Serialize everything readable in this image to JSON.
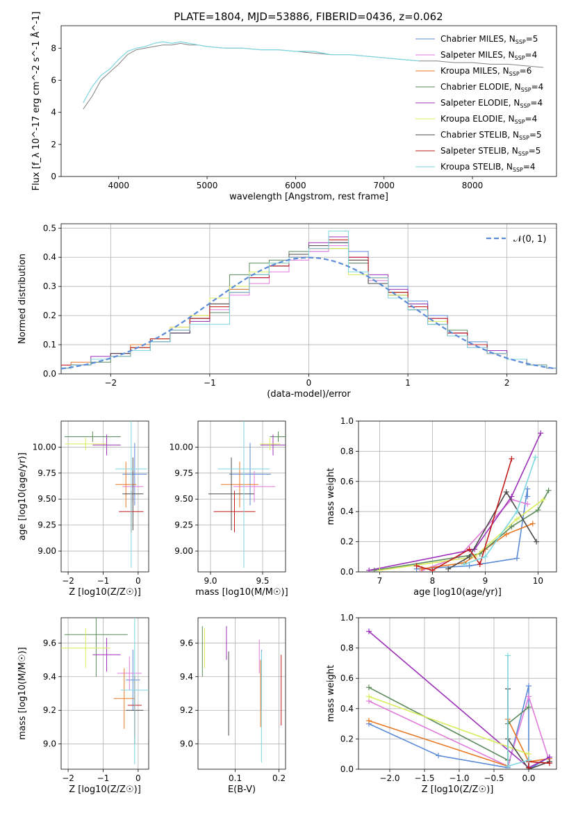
{
  "figure_title": "PLATE=1804, MJD=53886, FIBERID=0436, z=0.062",
  "models": [
    {
      "name": "Chabrier MILES",
      "nssp": "5",
      "color": "#5b8bd6"
    },
    {
      "name": "Salpeter MILES",
      "nssp": "4",
      "color": "#e07adb"
    },
    {
      "name": "Kroupa MILES",
      "nssp": "6",
      "color": "#e87722"
    },
    {
      "name": "Chabrier ELODIE",
      "nssp": "4",
      "color": "#5a8a5a"
    },
    {
      "name": "Salpeter ELODIE",
      "nssp": "4",
      "color": "#9b30b8"
    },
    {
      "name": "Kroupa ELODIE",
      "nssp": "4",
      "color": "#d9ec5c"
    },
    {
      "name": "Chabrier STELIB",
      "nssp": "5",
      "color": "#4a4a4a"
    },
    {
      "name": "Salpeter STELIB",
      "nssp": "5",
      "color": "#c21a1a"
    },
    {
      "name": "Kroupa STELIB",
      "nssp": "4",
      "color": "#7dd6e0"
    }
  ],
  "chart_data": [
    {
      "id": "spectrum",
      "type": "line",
      "title": "PLATE=1804, MJD=53886, FIBERID=0436, z=0.062",
      "xlabel": "wavelength [Angstrom, rest frame]",
      "ylabel": "Flux [f_λ 10^-17 erg cm^-2 s^-1 Å^-1]",
      "xlim": [
        3350,
        8950
      ],
      "ylim": [
        0,
        9.4
      ],
      "xticks": [
        4000,
        5000,
        6000,
        7000,
        8000
      ],
      "yticks": [
        0,
        2,
        4,
        6,
        8
      ],
      "legend": "top-right",
      "data_color": "#808080",
      "data_x": [
        3600,
        3700,
        3800,
        3900,
        4000,
        4100,
        4200,
        4300,
        4400,
        4500,
        4600,
        4700,
        4800,
        4900,
        5000,
        5200,
        5400,
        5600,
        5800,
        6000,
        6200,
        6400,
        6600,
        6800,
        7000,
        7200,
        7400,
        7600,
        7800,
        8000,
        8200,
        8400,
        8600,
        8800
      ],
      "data_y": [
        4.2,
        5.0,
        6.0,
        6.5,
        7.0,
        7.6,
        7.9,
        8.0,
        8.1,
        8.2,
        8.2,
        8.3,
        8.2,
        8.2,
        8.1,
        8.0,
        8.0,
        7.9,
        7.9,
        7.8,
        7.7,
        7.6,
        7.6,
        7.5,
        7.4,
        7.3,
        7.2,
        7.2,
        7.1,
        7.1,
        7.0,
        7.0,
        6.9,
        6.8
      ],
      "model_x": [
        3600,
        3700,
        3800,
        3900,
        4000,
        4100,
        4200,
        4300,
        4400,
        4500,
        4600,
        4700,
        4800,
        4900,
        5000,
        5200,
        5400,
        5600,
        5800,
        6000,
        6200,
        6400,
        6600,
        6800,
        7000,
        7200,
        7400
      ],
      "model_y": [
        4.6,
        5.6,
        6.3,
        6.7,
        7.3,
        7.8,
        8.0,
        8.1,
        8.3,
        8.4,
        8.3,
        8.4,
        8.3,
        8.2,
        8.1,
        8.0,
        8.0,
        7.9,
        7.9,
        7.8,
        7.8,
        7.6,
        7.6,
        7.5,
        7.4,
        7.3,
        7.2
      ]
    },
    {
      "id": "residuals",
      "type": "step",
      "xlabel": "(data-model)/error",
      "ylabel": "Normed distribution",
      "xlim": [
        -2.5,
        2.5
      ],
      "ylim": [
        0,
        0.515
      ],
      "xticks": [
        -2,
        -1,
        0,
        1,
        2
      ],
      "yticks": [
        0.0,
        0.1,
        0.2,
        0.3,
        0.4,
        0.5
      ],
      "legend": "top-right",
      "normal_label": "𝒩(0, 1)",
      "normal_color": "#5b8bd6",
      "bin_edges": [
        -2.6,
        -2.4,
        -2.2,
        -2.0,
        -1.8,
        -1.6,
        -1.4,
        -1.2,
        -1.0,
        -0.8,
        -0.6,
        -0.4,
        -0.2,
        0.0,
        0.2,
        0.4,
        0.6,
        0.8,
        1.0,
        1.2,
        1.4,
        1.6,
        1.8,
        2.0,
        2.2,
        2.4,
        2.6
      ],
      "hist_values": [
        [
          0.02,
          0.03,
          0.05,
          0.06,
          0.08,
          0.11,
          0.14,
          0.19,
          0.24,
          0.29,
          0.33,
          0.37,
          0.4,
          0.42,
          0.45,
          0.42,
          0.33,
          0.3,
          0.25,
          0.2,
          0.14,
          0.11,
          0.07,
          0.05,
          0.03,
          0.02
        ],
        [
          0.03,
          0.03,
          0.05,
          0.07,
          0.09,
          0.12,
          0.15,
          0.18,
          0.22,
          0.27,
          0.31,
          0.35,
          0.39,
          0.42,
          0.44,
          0.38,
          0.32,
          0.27,
          0.22,
          0.18,
          0.13,
          0.09,
          0.07,
          0.05,
          0.03,
          0.02
        ],
        [
          0.02,
          0.04,
          0.05,
          0.07,
          0.1,
          0.12,
          0.16,
          0.2,
          0.24,
          0.29,
          0.34,
          0.38,
          0.4,
          0.43,
          0.46,
          0.39,
          0.33,
          0.28,
          0.23,
          0.18,
          0.14,
          0.1,
          0.07,
          0.05,
          0.03,
          0.02
        ],
        [
          0.02,
          0.03,
          0.04,
          0.06,
          0.09,
          0.11,
          0.15,
          0.18,
          0.21,
          0.34,
          0.38,
          0.39,
          0.42,
          0.44,
          0.43,
          0.38,
          0.31,
          0.27,
          0.24,
          0.18,
          0.15,
          0.1,
          0.08,
          0.05,
          0.03,
          0.02
        ],
        [
          0.02,
          0.03,
          0.06,
          0.07,
          0.09,
          0.11,
          0.14,
          0.18,
          0.23,
          0.28,
          0.33,
          0.37,
          0.4,
          0.45,
          0.47,
          0.4,
          0.34,
          0.29,
          0.24,
          0.19,
          0.14,
          0.1,
          0.08,
          0.05,
          0.03,
          0.02
        ],
        [
          0.02,
          0.03,
          0.05,
          0.06,
          0.09,
          0.12,
          0.16,
          0.2,
          0.26,
          0.3,
          0.35,
          0.38,
          0.41,
          0.44,
          0.43,
          0.34,
          0.33,
          0.27,
          0.22,
          0.18,
          0.13,
          0.1,
          0.07,
          0.05,
          0.03,
          0.02
        ],
        [
          0.02,
          0.03,
          0.05,
          0.07,
          0.08,
          0.11,
          0.14,
          0.19,
          0.24,
          0.28,
          0.34,
          0.37,
          0.41,
          0.44,
          0.45,
          0.39,
          0.31,
          0.28,
          0.22,
          0.17,
          0.13,
          0.1,
          0.07,
          0.05,
          0.03,
          0.02
        ],
        [
          0.03,
          0.03,
          0.05,
          0.06,
          0.09,
          0.12,
          0.15,
          0.19,
          0.23,
          0.28,
          0.33,
          0.37,
          0.4,
          0.43,
          0.46,
          0.4,
          0.33,
          0.28,
          0.23,
          0.19,
          0.14,
          0.1,
          0.07,
          0.05,
          0.03,
          0.02
        ],
        [
          0.02,
          0.03,
          0.05,
          0.06,
          0.08,
          0.11,
          0.15,
          0.17,
          0.17,
          0.28,
          0.34,
          0.38,
          0.4,
          0.43,
          0.49,
          0.35,
          0.33,
          0.26,
          0.22,
          0.17,
          0.13,
          0.09,
          0.07,
          0.05,
          0.03,
          0.02
        ]
      ]
    },
    {
      "id": "age-vs-z",
      "type": "errorbar",
      "xlabel": "Z [log10(Z/Z☉)]",
      "ylabel": "age  [log10(age/yr)]",
      "xlim": [
        -2.2,
        0.3
      ],
      "ylim": [
        8.8,
        10.25
      ],
      "xticks": [
        -2,
        -1,
        0
      ],
      "yticks": [
        9.0,
        9.25,
        9.5,
        9.75,
        10.0
      ],
      "points": [
        {
          "x": -0.1,
          "xerr": 0.35,
          "y": 9.74,
          "yerr": 0.3
        },
        {
          "x": -0.15,
          "xerr": 0.3,
          "y": 9.62,
          "yerr": 0.15
        },
        {
          "x": -0.35,
          "xerr": 0.3,
          "y": 9.64,
          "yerr": 0.22
        },
        {
          "x": -1.3,
          "xerr": 0.8,
          "y": 10.1,
          "yerr": 0.05
        },
        {
          "x": -0.9,
          "xerr": 0.4,
          "y": 10.02,
          "yerr": 0.1
        },
        {
          "x": -1.5,
          "xerr": 0.6,
          "y": 10.03,
          "yerr": 0.06
        },
        {
          "x": -0.15,
          "xerr": 0.3,
          "y": 9.55,
          "yerr": 0.35
        },
        {
          "x": -0.2,
          "xerr": 0.35,
          "y": 9.38,
          "yerr": 0.2
        },
        {
          "x": -0.2,
          "xerr": 0.45,
          "y": 9.79,
          "yerr": 0.95
        }
      ]
    },
    {
      "id": "age-vs-mass",
      "type": "errorbar",
      "xlabel": "mass [log10(M/M☉)]",
      "ylabel": "",
      "xlim": [
        8.88,
        9.72
      ],
      "ylim": [
        8.8,
        10.25
      ],
      "xticks": [
        9.0,
        9.5
      ],
      "yticks": [
        9.0,
        9.25,
        9.5,
        9.75,
        10.0
      ],
      "points": [
        {
          "x": 9.38,
          "xerr": 0.2,
          "y": 9.74,
          "yerr": 0.3
        },
        {
          "x": 9.42,
          "xerr": 0.2,
          "y": 9.62,
          "yerr": 0.15
        },
        {
          "x": 9.28,
          "xerr": 0.18,
          "y": 9.64,
          "yerr": 0.22
        },
        {
          "x": 9.65,
          "xerr": 0.08,
          "y": 10.1,
          "yerr": 0.05
        },
        {
          "x": 9.6,
          "xerr": 0.12,
          "y": 10.02,
          "yerr": 0.1
        },
        {
          "x": 9.57,
          "xerr": 0.1,
          "y": 10.03,
          "yerr": 0.06
        },
        {
          "x": 9.2,
          "xerr": 0.22,
          "y": 9.55,
          "yerr": 0.35
        },
        {
          "x": 9.23,
          "xerr": 0.2,
          "y": 9.38,
          "yerr": 0.2
        },
        {
          "x": 9.32,
          "xerr": 0.25,
          "y": 9.79,
          "yerr": 0.95
        }
      ]
    },
    {
      "id": "weight-vs-age",
      "type": "line",
      "xlabel": "age  [log10(age/yr)]",
      "ylabel": "mass weight",
      "xlim": [
        6.6,
        10.35
      ],
      "ylim": [
        0,
        1.0
      ],
      "xticks": [
        7,
        8,
        9,
        10
      ],
      "yticks": [
        0.0,
        0.2,
        0.4,
        0.6,
        0.8,
        1.0
      ],
      "series": [
        {
          "x": [
            7.7,
            8.7,
            9.6,
            9.8,
            9.8
          ],
          "y": [
            0.02,
            0.04,
            0.09,
            0.55,
            0.5
          ]
        },
        {
          "x": [
            7.8,
            8.5,
            9.5,
            9.8
          ],
          "y": [
            0.01,
            0.1,
            0.48,
            0.45
          ]
        },
        {
          "x": [
            7.8,
            8.6,
            9.0,
            9.4,
            9.9
          ],
          "y": [
            0.02,
            0.06,
            0.15,
            0.25,
            0.32
          ]
        },
        {
          "x": [
            6.9,
            8.9,
            9.5,
            10.0,
            10.2
          ],
          "y": [
            0.01,
            0.12,
            0.3,
            0.41,
            0.54
          ]
        },
        {
          "x": [
            6.8,
            8.8,
            9.5,
            10.05
          ],
          "y": [
            0.01,
            0.15,
            0.5,
            0.92
          ]
        },
        {
          "x": [
            7.0,
            8.8,
            9.6,
            10.1
          ],
          "y": [
            0.01,
            0.1,
            0.35,
            0.48
          ]
        },
        {
          "x": [
            8.3,
            8.7,
            9.4,
            9.97
          ],
          "y": [
            0.02,
            0.1,
            0.53,
            0.2
          ]
        },
        {
          "x": [
            7.7,
            8.0,
            8.7,
            8.9,
            9.5
          ],
          "y": [
            0.04,
            0.01,
            0.15,
            0.05,
            0.75
          ]
        },
        {
          "x": [
            8.6,
            9.0,
            9.6,
            9.95
          ],
          "y": [
            0.05,
            0.1,
            0.4,
            0.76
          ]
        }
      ]
    },
    {
      "id": "mass-vs-z",
      "type": "errorbar",
      "xlabel": "Z [log10(Z/Z☉)]",
      "ylabel": "mass [log10(M/M☉)]",
      "xlim": [
        -2.2,
        0.3
      ],
      "ylim": [
        8.85,
        9.75
      ],
      "xticks": [
        -2,
        -1,
        0
      ],
      "yticks": [
        9.0,
        9.2,
        9.4,
        9.6
      ],
      "points": [
        {
          "x": -0.15,
          "xerr": 0.2,
          "y": 9.38,
          "yerr": 0.18
        },
        {
          "x": -0.25,
          "xerr": 0.35,
          "y": 9.42,
          "yerr": 0.1
        },
        {
          "x": -0.4,
          "xerr": 0.3,
          "y": 9.27,
          "yerr": 0.18
        },
        {
          "x": -1.2,
          "xerr": 0.9,
          "y": 9.65,
          "yerr": 0.25
        },
        {
          "x": -0.9,
          "xerr": 0.4,
          "y": 9.53,
          "yerr": 0.1
        },
        {
          "x": -1.5,
          "xerr": 0.7,
          "y": 9.57,
          "yerr": 0.12
        },
        {
          "x": -0.1,
          "xerr": 0.25,
          "y": 9.2,
          "yerr": 0.2
        },
        {
          "x": -0.1,
          "xerr": 0.2,
          "y": 9.23,
          "yerr": 0.18
        },
        {
          "x": -0.1,
          "xerr": 0.4,
          "y": 9.32,
          "yerr": 0.44
        }
      ]
    },
    {
      "id": "mass-vs-ebv",
      "type": "errorbar",
      "xlabel": "E(B-V)",
      "ylabel": "",
      "xlim": [
        0.015,
        0.215
      ],
      "ylim": [
        8.85,
        9.75
      ],
      "xticks": [
        0.1,
        0.2
      ],
      "yticks": [
        9.0,
        9.2,
        9.4,
        9.6
      ],
      "points": [
        {
          "x": 0.16,
          "xerr": 0,
          "y": 9.38,
          "yerr": 0.18
        },
        {
          "x": 0.155,
          "xerr": 0,
          "y": 9.52,
          "yerr": 0.1
        },
        {
          "x": 0.158,
          "xerr": 0,
          "y": 9.3,
          "yerr": 0.2
        },
        {
          "x": 0.025,
          "xerr": 0,
          "y": 9.55,
          "yerr": 0.15
        },
        {
          "x": 0.08,
          "xerr": 0,
          "y": 9.6,
          "yerr": 0.1
        },
        {
          "x": 0.03,
          "xerr": 0,
          "y": 9.57,
          "yerr": 0.12
        },
        {
          "x": 0.085,
          "xerr": 0,
          "y": 9.3,
          "yerr": 0.25
        },
        {
          "x": 0.205,
          "xerr": 0,
          "y": 9.32,
          "yerr": 0.21
        },
        {
          "x": 0.16,
          "xerr": 0,
          "y": 9.22,
          "yerr": 0.33
        }
      ]
    },
    {
      "id": "weight-vs-z",
      "type": "line",
      "xlabel": "Z [log10(Z/Z☉)]",
      "ylabel": "mass weight",
      "xlim": [
        -2.45,
        0.4
      ],
      "ylim": [
        0,
        1.0
      ],
      "xticks": [
        -2.0,
        -1.5,
        -1.0,
        -0.5,
        0.0
      ],
      "yticks": [
        0.0,
        0.2,
        0.4,
        0.6,
        0.8,
        1.0
      ],
      "series": [
        {
          "x": [
            -2.3,
            -1.3,
            -0.3,
            0.0,
            0.0,
            0.3
          ],
          "y": [
            0.3,
            0.09,
            0.01,
            0.55,
            0.0,
            0.08
          ]
        },
        {
          "x": [
            -2.3,
            -0.3,
            0.0,
            0.3
          ],
          "y": [
            0.45,
            0.02,
            0.48,
            0.05
          ]
        },
        {
          "x": [
            -2.3,
            -0.3,
            -0.3,
            0.0,
            0.3
          ],
          "y": [
            0.32,
            0.02,
            0.33,
            0.05,
            0.07
          ]
        },
        {
          "x": [
            -2.3,
            -0.3,
            -0.3,
            0.0
          ],
          "y": [
            0.54,
            0.06,
            0.3,
            0.41
          ]
        },
        {
          "x": [
            -2.3,
            0.0,
            0.3
          ],
          "y": [
            0.91,
            0.01,
            0.08
          ]
        },
        {
          "x": [
            -2.3,
            0.0
          ],
          "y": [
            0.48,
            0.1
          ]
        },
        {
          "x": [
            -0.3,
            -0.3,
            0.0,
            0.3
          ],
          "y": [
            0.53,
            0.2,
            0.0,
            0.05
          ]
        },
        {
          "x": [
            0.0,
            0.0,
            0.3
          ],
          "y": [
            0.01,
            0.05,
            0.04
          ]
        },
        {
          "x": [
            -0.3,
            -0.3,
            0.0
          ],
          "y": [
            0.75,
            0.02,
            0.06
          ]
        }
      ]
    }
  ]
}
